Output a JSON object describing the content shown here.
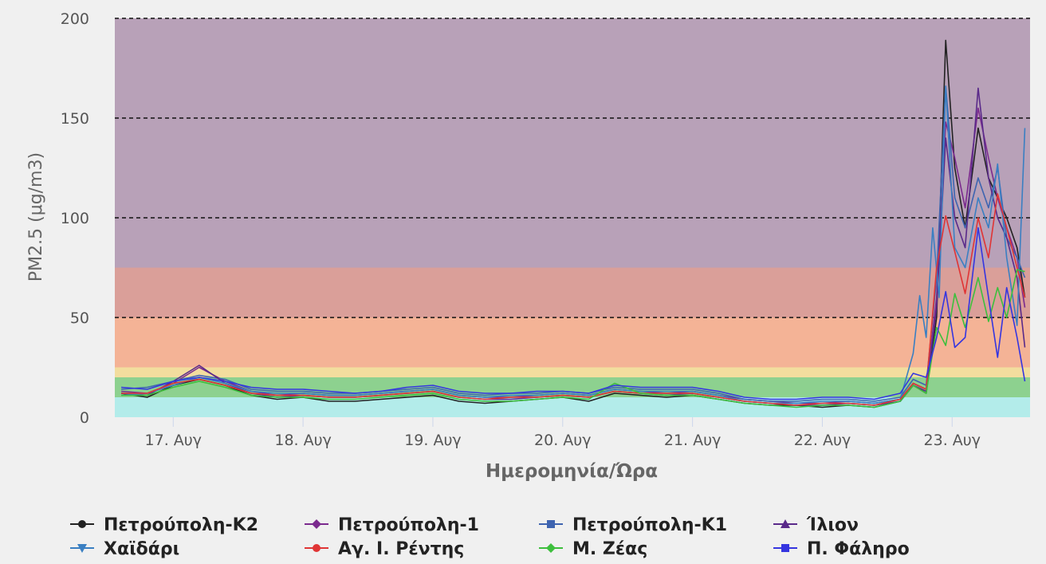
{
  "chart_data": {
    "type": "line",
    "xlabel": "Ημερομηνία/Ώρα",
    "ylabel": "PM2.5 (μg/m3)",
    "ylim": [
      0,
      200
    ],
    "yticks": [
      0,
      50,
      100,
      150,
      200
    ],
    "xlim": [
      16.55,
      23.6
    ],
    "xticks": [
      {
        "x": 17,
        "label": "17. Αυγ"
      },
      {
        "x": 18,
        "label": "18. Αυγ"
      },
      {
        "x": 19,
        "label": "19. Αυγ"
      },
      {
        "x": 20,
        "label": "20. Αυγ"
      },
      {
        "x": 21,
        "label": "21. Αυγ"
      },
      {
        "x": 22,
        "label": "22. Αυγ"
      },
      {
        "x": 23,
        "label": "23. Αυγ"
      }
    ],
    "grid": "dashed horizontal lines at 50, 100, 150, 200",
    "legend_position": "bottom",
    "bands": [
      {
        "from": 0,
        "to": 10,
        "color": "#b3ecea"
      },
      {
        "from": 10,
        "to": 20,
        "color": "#8dd18f"
      },
      {
        "from": 20,
        "to": 25,
        "color": "#f2dd9e"
      },
      {
        "from": 25,
        "to": 50,
        "color": "#f4b396"
      },
      {
        "from": 50,
        "to": 75,
        "color": "#da9f99"
      },
      {
        "from": 75,
        "to": 200,
        "color": "#b8a1b8"
      }
    ],
    "series": [
      {
        "name": "Πετρούπολη-Κ2",
        "color": "#222222",
        "marker": "circle",
        "x": [
          16.6,
          16.8,
          17.0,
          17.2,
          17.4,
          17.6,
          17.8,
          18.0,
          18.2,
          18.4,
          18.6,
          18.8,
          19.0,
          19.2,
          19.4,
          19.6,
          19.8,
          20.0,
          20.2,
          20.4,
          20.6,
          20.8,
          21.0,
          21.2,
          21.4,
          21.6,
          21.8,
          22.0,
          22.2,
          22.4,
          22.6,
          22.7,
          22.8,
          22.88,
          22.95,
          23.02,
          23.1,
          23.2,
          23.28,
          23.35,
          23.42,
          23.5,
          23.56
        ],
        "y": [
          12,
          10,
          16,
          19,
          16,
          11,
          9,
          10,
          8,
          8,
          9,
          10,
          11,
          8,
          7,
          8,
          9,
          10,
          8,
          12,
          11,
          10,
          11,
          9,
          7,
          6,
          6,
          5,
          6,
          5,
          8,
          16,
          12,
          50,
          189,
          125,
          95,
          145,
          120,
          110,
          100,
          85,
          60
        ]
      },
      {
        "name": "Πετρούπολη-1",
        "color": "#7b2a8e",
        "marker": "diamond",
        "x": [
          16.6,
          16.8,
          17.0,
          17.2,
          17.4,
          17.6,
          17.8,
          18.0,
          18.2,
          18.4,
          18.6,
          18.8,
          19.0,
          19.2,
          19.4,
          19.6,
          19.8,
          20.0,
          20.2,
          20.4,
          20.6,
          20.8,
          21.0,
          21.2,
          21.4,
          21.6,
          21.8,
          22.0,
          22.2,
          22.4,
          22.6,
          22.7,
          22.8,
          22.88,
          22.95,
          23.02,
          23.1,
          23.2,
          23.28,
          23.35,
          23.42,
          23.5,
          23.56
        ],
        "y": [
          13,
          12,
          17,
          25,
          18,
          13,
          11,
          12,
          11,
          11,
          12,
          13,
          14,
          11,
          10,
          10,
          11,
          12,
          11,
          14,
          13,
          12,
          13,
          11,
          9,
          8,
          7,
          7,
          8,
          7,
          9,
          17,
          14,
          60,
          148,
          130,
          105,
          155,
          130,
          110,
          95,
          80,
          55
        ]
      },
      {
        "name": "Πετρούπολη-Κ1",
        "color": "#3e64b0",
        "marker": "square",
        "x": [
          16.6,
          16.8,
          17.0,
          17.2,
          17.4,
          17.6,
          17.8,
          18.0,
          18.2,
          18.4,
          18.6,
          18.8,
          19.0,
          19.2,
          19.4,
          19.6,
          19.8,
          20.0,
          20.2,
          20.4,
          20.6,
          20.8,
          21.0,
          21.2,
          21.4,
          21.6,
          21.8,
          22.0,
          22.2,
          22.4,
          22.6,
          22.7,
          22.8,
          22.88,
          22.95,
          23.02,
          23.1,
          23.2,
          23.28,
          23.35,
          23.42,
          23.5,
          23.56
        ],
        "y": [
          14,
          15,
          18,
          21,
          19,
          14,
          13,
          13,
          12,
          12,
          13,
          14,
          15,
          12,
          11,
          12,
          12,
          13,
          12,
          15,
          14,
          14,
          14,
          12,
          9,
          8,
          8,
          9,
          9,
          8,
          10,
          19,
          16,
          70,
          166,
          110,
          95,
          120,
          105,
          125,
          90,
          80,
          70
        ]
      },
      {
        "name": "Ίλιον",
        "color": "#5a2a8a",
        "marker": "triangle",
        "x": [
          16.6,
          16.8,
          17.0,
          17.2,
          17.4,
          17.6,
          17.8,
          18.0,
          18.2,
          18.4,
          18.6,
          18.8,
          19.0,
          19.2,
          19.4,
          19.6,
          19.8,
          20.0,
          20.2,
          20.4,
          20.6,
          20.8,
          21.0,
          21.2,
          21.4,
          21.6,
          21.8,
          22.0,
          22.2,
          22.4,
          22.6,
          22.7,
          22.8,
          22.88,
          22.95,
          23.02,
          23.1,
          23.2,
          23.28,
          23.35,
          23.42,
          23.5,
          23.56
        ],
        "y": [
          12,
          11,
          18,
          26,
          17,
          12,
          10,
          11,
          10,
          10,
          11,
          12,
          13,
          10,
          9,
          9,
          10,
          11,
          10,
          13,
          12,
          11,
          12,
          10,
          8,
          7,
          6,
          6,
          7,
          6,
          8,
          16,
          13,
          55,
          140,
          100,
          85,
          165,
          120,
          100,
          90,
          70,
          35
        ]
      },
      {
        "name": "Χαϊδάρι",
        "color": "#3a7fc2",
        "marker": "triangle-down",
        "x": [
          16.6,
          16.8,
          17.0,
          17.2,
          17.4,
          17.6,
          17.8,
          18.0,
          18.2,
          18.4,
          18.6,
          18.8,
          19.0,
          19.2,
          19.4,
          19.6,
          19.8,
          20.0,
          20.2,
          20.4,
          20.6,
          20.8,
          21.0,
          21.2,
          21.4,
          21.6,
          21.8,
          22.0,
          22.2,
          22.4,
          22.6,
          22.7,
          22.75,
          22.8,
          22.85,
          22.9,
          22.95,
          23.02,
          23.1,
          23.2,
          23.28,
          23.35,
          23.42,
          23.5,
          23.56
        ],
        "y": [
          11,
          12,
          16,
          20,
          17,
          13,
          12,
          12,
          11,
          11,
          12,
          13,
          14,
          11,
          10,
          11,
          11,
          12,
          11,
          14,
          13,
          13,
          13,
          11,
          8,
          7,
          7,
          8,
          8,
          7,
          9,
          32,
          61,
          40,
          95,
          60,
          166,
          85,
          75,
          110,
          95,
          127,
          80,
          46,
          145
        ]
      },
      {
        "name": "Αγ. Ι. Ρέντης",
        "color": "#e03535",
        "marker": "circle",
        "x": [
          16.6,
          16.8,
          17.0,
          17.2,
          17.4,
          17.6,
          17.8,
          18.0,
          18.2,
          18.4,
          18.6,
          18.8,
          19.0,
          19.2,
          19.4,
          19.6,
          19.8,
          20.0,
          20.2,
          20.4,
          20.6,
          20.8,
          21.0,
          21.2,
          21.4,
          21.6,
          21.8,
          22.0,
          22.2,
          22.4,
          22.6,
          22.7,
          22.8,
          22.88,
          22.95,
          23.02,
          23.1,
          23.2,
          23.28,
          23.35,
          23.42,
          23.5,
          23.56
        ],
        "y": [
          12,
          12,
          17,
          19,
          16,
          12,
          11,
          11,
          10,
          10,
          11,
          12,
          13,
          10,
          9,
          10,
          10,
          11,
          10,
          13,
          12,
          12,
          12,
          10,
          8,
          7,
          6,
          7,
          7,
          6,
          9,
          17,
          14,
          75,
          101,
          83,
          62,
          100,
          80,
          112,
          95,
          75,
          60
        ]
      },
      {
        "name": "Μ. Ζέας",
        "color": "#3dbf3d",
        "marker": "diamond",
        "x": [
          16.6,
          16.8,
          17.0,
          17.2,
          17.4,
          17.6,
          17.8,
          18.0,
          18.2,
          18.4,
          18.6,
          18.8,
          19.0,
          19.2,
          19.4,
          19.6,
          19.8,
          20.0,
          20.2,
          20.4,
          20.6,
          20.8,
          21.0,
          21.2,
          21.4,
          21.6,
          21.8,
          22.0,
          22.2,
          22.4,
          22.6,
          22.7,
          22.8,
          22.88,
          22.95,
          23.02,
          23.1,
          23.2,
          23.28,
          23.35,
          23.42,
          23.5,
          23.56
        ],
        "y": [
          11,
          11,
          15,
          18,
          15,
          11,
          10,
          10,
          9,
          9,
          10,
          11,
          12,
          9,
          8,
          8,
          9,
          10,
          9,
          17,
          12,
          11,
          11,
          9,
          7,
          6,
          5,
          6,
          6,
          5,
          8,
          16,
          12,
          45,
          36,
          62,
          45,
          70,
          48,
          65,
          50,
          74,
          73
        ]
      },
      {
        "name": "Π. Φάληρο",
        "color": "#3535e0",
        "marker": "square",
        "x": [
          16.6,
          16.8,
          17.0,
          17.2,
          17.4,
          17.6,
          17.8,
          18.0,
          18.2,
          18.4,
          18.6,
          18.8,
          19.0,
          19.2,
          19.4,
          19.6,
          19.8,
          20.0,
          20.2,
          20.4,
          20.6,
          20.8,
          21.0,
          21.2,
          21.4,
          21.6,
          21.8,
          22.0,
          22.2,
          22.4,
          22.6,
          22.7,
          22.8,
          22.88,
          22.95,
          23.02,
          23.1,
          23.2,
          23.28,
          23.35,
          23.42,
          23.5,
          23.56
        ],
        "y": [
          15,
          14,
          18,
          20,
          18,
          15,
          14,
          14,
          13,
          12,
          13,
          15,
          16,
          13,
          12,
          12,
          13,
          13,
          12,
          16,
          15,
          15,
          15,
          13,
          10,
          9,
          9,
          10,
          10,
          9,
          12,
          22,
          20,
          40,
          63,
          35,
          40,
          95,
          60,
          30,
          65,
          40,
          18
        ]
      }
    ]
  }
}
